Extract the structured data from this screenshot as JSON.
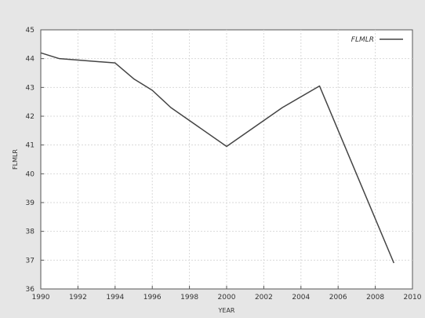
{
  "chart_data": {
    "type": "line",
    "title": "",
    "xlabel": "YEAR",
    "ylabel": "FLMLR",
    "xlim": [
      1990,
      2010
    ],
    "ylim": [
      36,
      45
    ],
    "xticks": [
      1990,
      1992,
      1994,
      1996,
      1998,
      2000,
      2002,
      2004,
      2006,
      2008,
      2010
    ],
    "yticks": [
      36,
      37,
      38,
      39,
      40,
      41,
      42,
      43,
      44,
      45
    ],
    "grid": true,
    "legend_position": "top-right",
    "series": [
      {
        "name": "FLMLR",
        "color": "#444444",
        "x": [
          1990,
          1991,
          1994,
          1995,
          1996,
          1997,
          2000,
          2002,
          2003,
          2005,
          2009
        ],
        "y": [
          44.2,
          44.0,
          43.85,
          43.3,
          42.9,
          42.3,
          40.95,
          41.85,
          42.3,
          43.05,
          36.9
        ]
      }
    ]
  }
}
